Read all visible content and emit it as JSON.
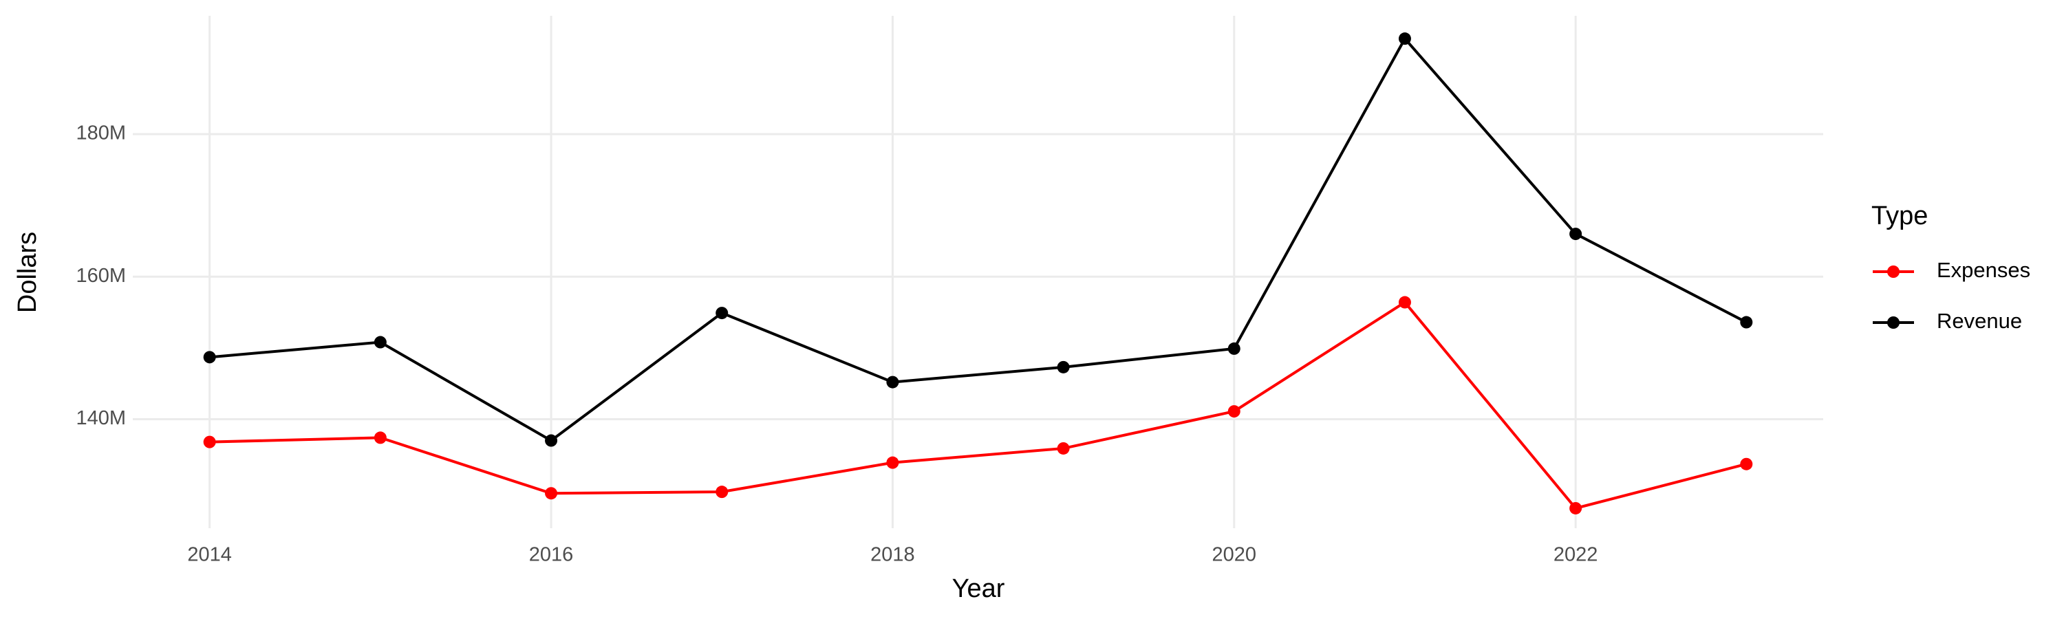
{
  "chart_data": {
    "type": "line",
    "x_label": "Year",
    "y_label": "Dollars",
    "legend_title": "Type",
    "x": [
      2014,
      2015,
      2016,
      2017,
      2018,
      2019,
      2020,
      2021,
      2022,
      2023
    ],
    "series": [
      {
        "name": "Expenses",
        "color": "#ff0000",
        "values": [
          136800000,
          137400000,
          129600000,
          129800000,
          133900000,
          135900000,
          141100000,
          156400000,
          127500000,
          133700000
        ]
      },
      {
        "name": "Revenue",
        "color": "#000000",
        "values": [
          148700000,
          150800000,
          137000000,
          154900000,
          145200000,
          147300000,
          149900000,
          193400000,
          166000000,
          153600000
        ]
      }
    ],
    "xlim": [
      2013.55,
      2023.45
    ],
    "xticks": [
      2014,
      2016,
      2018,
      2020,
      2022
    ],
    "ylim": [
      124700000,
      196600000
    ],
    "yticks": [
      {
        "value": 140000000,
        "label": "140M"
      },
      {
        "value": 160000000,
        "label": "160M"
      },
      {
        "value": 180000000,
        "label": "180M"
      }
    ],
    "grid": true,
    "legend": "right"
  }
}
